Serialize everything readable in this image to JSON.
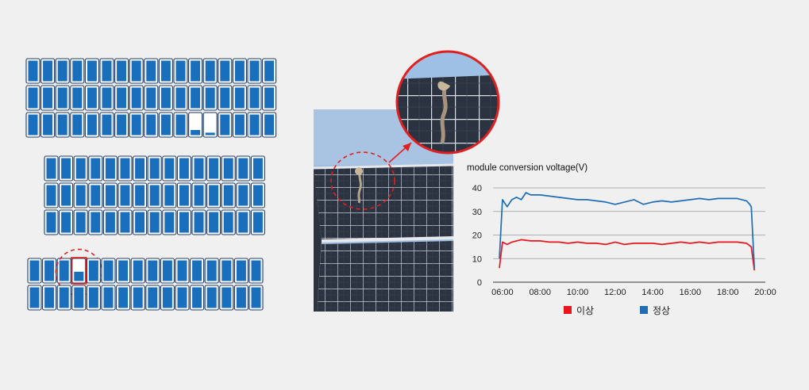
{
  "panels": [
    {
      "name": "top-array",
      "rows": 3,
      "cols": 17,
      "special": [
        {
          "row": 2,
          "col": 11,
          "level": 0.25
        },
        {
          "row": 2,
          "col": 12,
          "level": 0.12
        }
      ]
    },
    {
      "name": "middle-array",
      "rows": 3,
      "cols": 15,
      "special": []
    },
    {
      "name": "bottom-array",
      "rows": 2,
      "cols": 16,
      "special": [
        {
          "row": 0,
          "col": 3,
          "level": 0.45,
          "highlight": true
        }
      ]
    }
  ],
  "colors": {
    "cell_fill": "#1a6fbd",
    "cell_frame": "#1f3b66",
    "highlight": "#e02020",
    "series_fault": "#e8141e",
    "series_normal": "#1f6db4",
    "sky": "#a8c4e2",
    "panel": "#2b3240"
  },
  "chart_data": {
    "type": "line",
    "title": "module conversion voltage(V)",
    "xlabel": "",
    "ylabel": "",
    "xlim": [
      "05:45",
      "20:00"
    ],
    "ylim": [
      0,
      40
    ],
    "yticks": [
      "0",
      "10",
      "20",
      "30",
      "40"
    ],
    "xticks": [
      "06:00",
      "08:00",
      "10:00",
      "12:00",
      "14:00",
      "16:00",
      "18:00",
      "20:00"
    ],
    "grid": true,
    "legend_position": "bottom",
    "series": [
      {
        "name": "이상",
        "color": "#e8141e",
        "x": [
          "05:50",
          "06:00",
          "06:15",
          "06:30",
          "07:00",
          "07:30",
          "08:00",
          "08:30",
          "09:00",
          "09:30",
          "10:00",
          "10:30",
          "11:00",
          "11:30",
          "12:00",
          "12:30",
          "13:00",
          "13:30",
          "14:00",
          "14:30",
          "15:00",
          "15:30",
          "16:00",
          "16:30",
          "17:00",
          "17:30",
          "18:00",
          "18:30",
          "19:00",
          "19:15",
          "19:25"
        ],
        "values": [
          6,
          17,
          16,
          17,
          18,
          17.5,
          17.5,
          17,
          17,
          16.5,
          17,
          16.5,
          16.5,
          16,
          17,
          16,
          16.5,
          16.5,
          16.5,
          16,
          16.5,
          17,
          16.5,
          17,
          16.5,
          17,
          17,
          17,
          16.5,
          15,
          5
        ]
      },
      {
        "name": "정상",
        "color": "#1f6db4",
        "x": [
          "05:50",
          "06:00",
          "06:15",
          "06:30",
          "06:45",
          "07:00",
          "07:15",
          "07:30",
          "08:00",
          "08:30",
          "09:00",
          "09:30",
          "10:00",
          "10:30",
          "11:00",
          "11:30",
          "12:00",
          "12:30",
          "13:00",
          "13:30",
          "14:00",
          "14:30",
          "15:00",
          "15:30",
          "16:00",
          "16:30",
          "17:00",
          "17:30",
          "18:00",
          "18:30",
          "19:00",
          "19:10",
          "19:15",
          "19:25"
        ],
        "values": [
          10,
          35,
          32,
          35,
          36,
          35,
          38,
          37,
          37,
          36.5,
          36,
          35.5,
          35,
          35,
          34.5,
          34,
          33,
          34,
          35,
          33,
          34,
          34.5,
          34,
          34.5,
          35,
          35.5,
          35,
          35.5,
          35.5,
          35.5,
          34.5,
          33,
          32,
          6
        ]
      }
    ]
  }
}
